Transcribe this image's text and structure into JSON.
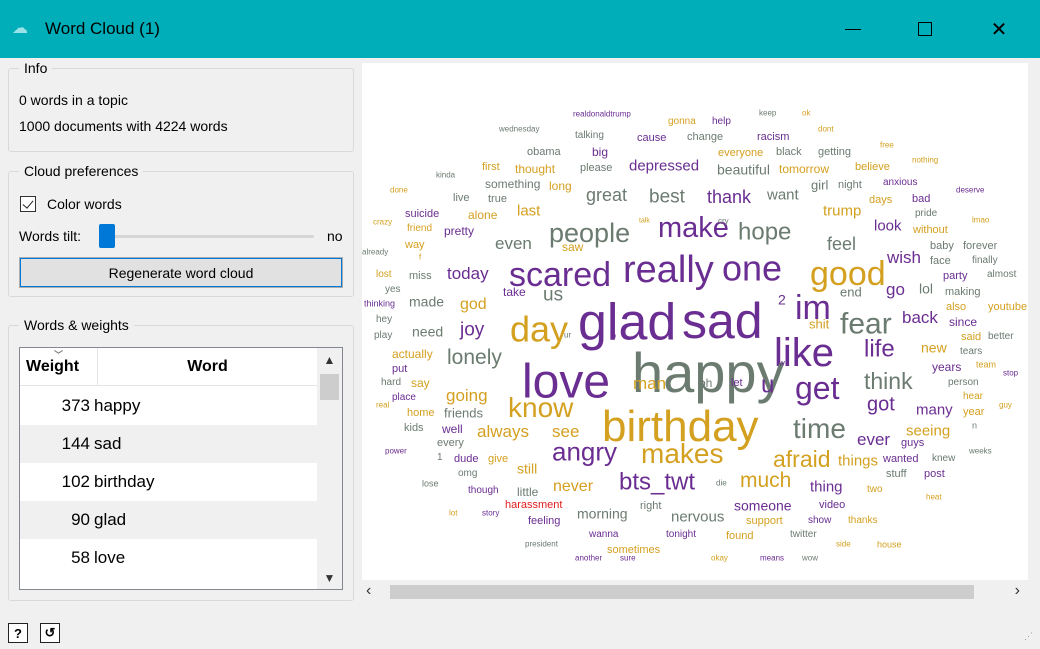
{
  "window": {
    "title": "Word Cloud (1)",
    "minimize": "minimize",
    "maximize": "maximize",
    "close": "✕"
  },
  "info": {
    "legend": "Info",
    "words_in_topic": "0 words in a topic",
    "documents": "1000 documents with 4224 words"
  },
  "prefs": {
    "legend": "Cloud preferences",
    "color_words_label": "Color words",
    "color_words_checked": true,
    "words_tilt_label": "Words tilt:",
    "words_tilt_value": "no",
    "regenerate_label": "Regenerate word cloud"
  },
  "weights": {
    "legend": "Words & weights",
    "col_weight": "Weight",
    "col_word": "Word",
    "rows": [
      {
        "weight": "373",
        "word": "happy"
      },
      {
        "weight": "144",
        "word": "sad"
      },
      {
        "weight": "102",
        "word": "birthday"
      },
      {
        "weight": "90",
        "word": "glad"
      },
      {
        "weight": "58",
        "word": "love"
      }
    ]
  },
  "colors": {
    "purple": "#6a2d91",
    "gold": "#d4a020",
    "gray": "#6b7b70",
    "red": "#e02020",
    "titlebar": "#00aeb9"
  },
  "cloud_words": [
    {
      "t": "realdonaldtrump",
      "c": "purple",
      "s": 8
    },
    {
      "t": "gonna",
      "c": "gold",
      "s": 10
    },
    {
      "t": "help",
      "c": "purple",
      "s": 10
    },
    {
      "t": "keep",
      "c": "gray",
      "s": 8
    },
    {
      "t": "ok",
      "c": "gold",
      "s": 8
    },
    {
      "t": "wednesday",
      "c": "gray",
      "s": 8
    },
    {
      "t": "talking",
      "c": "gray",
      "s": 10
    },
    {
      "t": "cause",
      "c": "purple",
      "s": 11
    },
    {
      "t": "change",
      "c": "gray",
      "s": 11
    },
    {
      "t": "racism",
      "c": "purple",
      "s": 11
    },
    {
      "t": "dont",
      "c": "gold",
      "s": 8
    },
    {
      "t": "obama",
      "c": "gray",
      "s": 11
    },
    {
      "t": "big",
      "c": "purple",
      "s": 12
    },
    {
      "t": "everyone",
      "c": "gold",
      "s": 11
    },
    {
      "t": "black",
      "c": "gray",
      "s": 11
    },
    {
      "t": "getting",
      "c": "gray",
      "s": 11
    },
    {
      "t": "free",
      "c": "gold",
      "s": 8
    },
    {
      "t": "first",
      "c": "gold",
      "s": 11
    },
    {
      "t": "thought",
      "c": "gold",
      "s": 12
    },
    {
      "t": "please",
      "c": "gray",
      "s": 11
    },
    {
      "t": "depressed",
      "c": "purple",
      "s": 15
    },
    {
      "t": "beautiful",
      "c": "gray",
      "s": 14
    },
    {
      "t": "tomorrow",
      "c": "gold",
      "s": 12
    },
    {
      "t": "believe",
      "c": "gold",
      "s": 11
    },
    {
      "t": "nothing",
      "c": "gold",
      "s": 8
    },
    {
      "t": "kinda",
      "c": "gray",
      "s": 8
    },
    {
      "t": "something",
      "c": "gray",
      "s": 12
    },
    {
      "t": "long",
      "c": "gold",
      "s": 12
    },
    {
      "t": "girl",
      "c": "gray",
      "s": 13
    },
    {
      "t": "night",
      "c": "gray",
      "s": 11
    },
    {
      "t": "anxious",
      "c": "purple",
      "s": 10
    },
    {
      "t": "done",
      "c": "gold",
      "s": 8
    },
    {
      "t": "live",
      "c": "gray",
      "s": 11
    },
    {
      "t": "true",
      "c": "gray",
      "s": 11
    },
    {
      "t": "great",
      "c": "gray",
      "s": 18
    },
    {
      "t": "best",
      "c": "gray",
      "s": 19
    },
    {
      "t": "thank",
      "c": "purple",
      "s": 18
    },
    {
      "t": "want",
      "c": "gray",
      "s": 15
    },
    {
      "t": "days",
      "c": "gold",
      "s": 11
    },
    {
      "t": "bad",
      "c": "purple",
      "s": 11
    },
    {
      "t": "deserve",
      "c": "purple",
      "s": 8
    },
    {
      "t": "suicide",
      "c": "purple",
      "s": 11
    },
    {
      "t": "alone",
      "c": "gold",
      "s": 12
    },
    {
      "t": "last",
      "c": "gold",
      "s": 15
    },
    {
      "t": "trump",
      "c": "gold",
      "s": 15
    },
    {
      "t": "pride",
      "c": "gray",
      "s": 10
    },
    {
      "t": "crazy",
      "c": "gold",
      "s": 8
    },
    {
      "t": "friend",
      "c": "gold",
      "s": 10
    },
    {
      "t": "pretty",
      "c": "purple",
      "s": 12
    },
    {
      "t": "people",
      "c": "gray",
      "s": 27
    },
    {
      "t": "talk",
      "c": "gold",
      "s": 7
    },
    {
      "t": "make",
      "c": "purple",
      "s": 29
    },
    {
      "t": "cry",
      "c": "gray",
      "s": 8
    },
    {
      "t": "hope",
      "c": "gray",
      "s": 24
    },
    {
      "t": "look",
      "c": "purple",
      "s": 15
    },
    {
      "t": "without",
      "c": "gold",
      "s": 11
    },
    {
      "t": "lmao",
      "c": "gold",
      "s": 8
    },
    {
      "t": "way",
      "c": "gold",
      "s": 11
    },
    {
      "t": "even",
      "c": "gray",
      "s": 17
    },
    {
      "t": "feel",
      "c": "gray",
      "s": 18
    },
    {
      "t": "baby",
      "c": "gray",
      "s": 11
    },
    {
      "t": "forever",
      "c": "gray",
      "s": 11
    },
    {
      "t": "already",
      "c": "gray",
      "s": 8
    },
    {
      "t": "f",
      "c": "gold",
      "s": 8
    },
    {
      "t": "saw",
      "c": "gold",
      "s": 12
    },
    {
      "t": "wish",
      "c": "purple",
      "s": 17
    },
    {
      "t": "face",
      "c": "gray",
      "s": 11
    },
    {
      "t": "finally",
      "c": "gray",
      "s": 10
    },
    {
      "t": "scared",
      "c": "purple",
      "s": 34
    },
    {
      "t": "really",
      "c": "purple",
      "s": 38
    },
    {
      "t": "one",
      "c": "purple",
      "s": 36
    },
    {
      "t": "good",
      "c": "gold",
      "s": 34
    },
    {
      "t": "lost",
      "c": "gold",
      "s": 10
    },
    {
      "t": "miss",
      "c": "gray",
      "s": 11
    },
    {
      "t": "today",
      "c": "purple",
      "s": 17
    },
    {
      "t": "party",
      "c": "purple",
      "s": 11
    },
    {
      "t": "almost",
      "c": "gray",
      "s": 10
    },
    {
      "t": "yes",
      "c": "gray",
      "s": 10
    },
    {
      "t": "take",
      "c": "purple",
      "s": 12
    },
    {
      "t": "us",
      "c": "gray",
      "s": 19
    },
    {
      "t": "glad",
      "c": "purple",
      "s": 52
    },
    {
      "t": "sad",
      "c": "purple",
      "s": 50
    },
    {
      "t": "2",
      "c": "purple",
      "s": 14
    },
    {
      "t": "im",
      "c": "purple",
      "s": 34
    },
    {
      "t": "end",
      "c": "gray",
      "s": 13
    },
    {
      "t": "go",
      "c": "purple",
      "s": 17
    },
    {
      "t": "lol",
      "c": "gray",
      "s": 14
    },
    {
      "t": "making",
      "c": "gray",
      "s": 11
    },
    {
      "t": "thinking",
      "c": "purple",
      "s": 9
    },
    {
      "t": "made",
      "c": "gray",
      "s": 14
    },
    {
      "t": "god",
      "c": "gold",
      "s": 16
    },
    {
      "t": "also",
      "c": "gold",
      "s": 11
    },
    {
      "t": "youtube",
      "c": "gold",
      "s": 11
    },
    {
      "t": "hey",
      "c": "gray",
      "s": 10
    },
    {
      "t": "day",
      "c": "gold",
      "s": 36
    },
    {
      "t": "shit",
      "c": "gold",
      "s": 13
    },
    {
      "t": "fear",
      "c": "gray",
      "s": 30
    },
    {
      "t": "back",
      "c": "purple",
      "s": 17
    },
    {
      "t": "since",
      "c": "purple",
      "s": 12
    },
    {
      "t": "need",
      "c": "gray",
      "s": 14
    },
    {
      "t": "joy",
      "c": "purple",
      "s": 19
    },
    {
      "t": "play",
      "c": "gray",
      "s": 10
    },
    {
      "t": "ur",
      "c": "gray",
      "s": 8
    },
    {
      "t": "b",
      "c": "purple",
      "s": 9
    },
    {
      "t": "like",
      "c": "purple",
      "s": 40
    },
    {
      "t": "life",
      "c": "purple",
      "s": 24
    },
    {
      "t": "said",
      "c": "gold",
      "s": 11
    },
    {
      "t": "better",
      "c": "gray",
      "s": 10
    },
    {
      "t": "actually",
      "c": "gold",
      "s": 12
    },
    {
      "t": "lonely",
      "c": "gray",
      "s": 21
    },
    {
      "t": "love",
      "c": "purple",
      "s": 48
    },
    {
      "t": "happy",
      "c": "gray",
      "s": 56
    },
    {
      "t": "new",
      "c": "gold",
      "s": 14
    },
    {
      "t": "tears",
      "c": "gray",
      "s": 10
    },
    {
      "t": "put",
      "c": "purple",
      "s": 11
    },
    {
      "t": "w",
      "c": "purple",
      "s": 8
    },
    {
      "t": "years",
      "c": "purple",
      "s": 12
    },
    {
      "t": "team",
      "c": "gold",
      "s": 9
    },
    {
      "t": "hard",
      "c": "gray",
      "s": 10
    },
    {
      "t": "say",
      "c": "gold",
      "s": 12
    },
    {
      "t": "man",
      "c": "gold",
      "s": 17
    },
    {
      "t": "oh",
      "c": "gray",
      "s": 12
    },
    {
      "t": "let",
      "c": "purple",
      "s": 11
    },
    {
      "t": "u",
      "c": "purple",
      "s": 24
    },
    {
      "t": "get",
      "c": "purple",
      "s": 32
    },
    {
      "t": "think",
      "c": "gray",
      "s": 23
    },
    {
      "t": "person",
      "c": "gray",
      "s": 10
    },
    {
      "t": "stop",
      "c": "purple",
      "s": 8
    },
    {
      "t": "place",
      "c": "purple",
      "s": 10
    },
    {
      "t": "going",
      "c": "gold",
      "s": 17
    },
    {
      "t": "know",
      "c": "gold",
      "s": 28
    },
    {
      "t": "got",
      "c": "purple",
      "s": 20
    },
    {
      "t": "hear",
      "c": "gold",
      "s": 10
    },
    {
      "t": "real",
      "c": "gold",
      "s": 8
    },
    {
      "t": "home",
      "c": "gold",
      "s": 11
    },
    {
      "t": "friends",
      "c": "gray",
      "s": 13
    },
    {
      "t": "birthday",
      "c": "gold",
      "s": 44
    },
    {
      "t": "time",
      "c": "gray",
      "s": 28
    },
    {
      "t": "many",
      "c": "purple",
      "s": 15
    },
    {
      "t": "year",
      "c": "gold",
      "s": 11
    },
    {
      "t": "guy",
      "c": "gold",
      "s": 8
    },
    {
      "t": "kids",
      "c": "gray",
      "s": 11
    },
    {
      "t": "well",
      "c": "purple",
      "s": 12
    },
    {
      "t": "always",
      "c": "gold",
      "s": 17
    },
    {
      "t": "see",
      "c": "gold",
      "s": 17
    },
    {
      "t": "seeing",
      "c": "gold",
      "s": 15
    },
    {
      "t": "n",
      "c": "gray",
      "s": 9
    },
    {
      "t": "every",
      "c": "gray",
      "s": 11
    },
    {
      "t": "angry",
      "c": "purple",
      "s": 26
    },
    {
      "t": "makes",
      "c": "gold",
      "s": 28
    },
    {
      "t": "ever",
      "c": "purple",
      "s": 17
    },
    {
      "t": "guys",
      "c": "purple",
      "s": 11
    },
    {
      "t": "power",
      "c": "purple",
      "s": 8
    },
    {
      "t": "1",
      "c": "gray",
      "s": 10
    },
    {
      "t": "dude",
      "c": "purple",
      "s": 11
    },
    {
      "t": "give",
      "c": "gold",
      "s": 11
    },
    {
      "t": "afraid",
      "c": "gold",
      "s": 23
    },
    {
      "t": "things",
      "c": "gold",
      "s": 15
    },
    {
      "t": "wanted",
      "c": "purple",
      "s": 11
    },
    {
      "t": "knew",
      "c": "gray",
      "s": 10
    },
    {
      "t": "weeks",
      "c": "gray",
      "s": 8
    },
    {
      "t": "omg",
      "c": "gray",
      "s": 10
    },
    {
      "t": "still",
      "c": "gold",
      "s": 14
    },
    {
      "t": "bts_twt",
      "c": "purple",
      "s": 24
    },
    {
      "t": "much",
      "c": "gold",
      "s": 21
    },
    {
      "t": "stuff",
      "c": "gray",
      "s": 11
    },
    {
      "t": "post",
      "c": "purple",
      "s": 11
    },
    {
      "t": "lose",
      "c": "gray",
      "s": 9
    },
    {
      "t": "never",
      "c": "gold",
      "s": 16
    },
    {
      "t": "die",
      "c": "gray",
      "s": 8
    },
    {
      "t": "thing",
      "c": "purple",
      "s": 15
    },
    {
      "t": "two",
      "c": "gold",
      "s": 10
    },
    {
      "t": "though",
      "c": "purple",
      "s": 10
    },
    {
      "t": "little",
      "c": "gray",
      "s": 12
    },
    {
      "t": "heat",
      "c": "gold",
      "s": 8
    },
    {
      "t": "harassment",
      "c": "red",
      "s": 11
    },
    {
      "t": "right",
      "c": "gray",
      "s": 11
    },
    {
      "t": "someone",
      "c": "purple",
      "s": 14
    },
    {
      "t": "video",
      "c": "purple",
      "s": 11
    },
    {
      "t": "lot",
      "c": "gold",
      "s": 8
    },
    {
      "t": "story",
      "c": "purple",
      "s": 8
    },
    {
      "t": "feeling",
      "c": "purple",
      "s": 11
    },
    {
      "t": "morning",
      "c": "gray",
      "s": 14
    },
    {
      "t": "nervous",
      "c": "gray",
      "s": 15
    },
    {
      "t": "support",
      "c": "gold",
      "s": 11
    },
    {
      "t": "show",
      "c": "purple",
      "s": 10
    },
    {
      "t": "thanks",
      "c": "gold",
      "s": 10
    },
    {
      "t": "wanna",
      "c": "purple",
      "s": 10
    },
    {
      "t": "tonight",
      "c": "purple",
      "s": 10
    },
    {
      "t": "found",
      "c": "gold",
      "s": 11
    },
    {
      "t": "twitter",
      "c": "gray",
      "s": 10
    },
    {
      "t": "president",
      "c": "gray",
      "s": 8
    },
    {
      "t": "sometimes",
      "c": "gold",
      "s": 11
    },
    {
      "t": "side",
      "c": "gold",
      "s": 8
    },
    {
      "t": "house",
      "c": "gold",
      "s": 9
    },
    {
      "t": "another",
      "c": "purple",
      "s": 8
    },
    {
      "t": "sure",
      "c": "purple",
      "s": 8
    },
    {
      "t": "okay",
      "c": "gold",
      "s": 8
    },
    {
      "t": "means",
      "c": "purple",
      "s": 8
    },
    {
      "t": "wow",
      "c": "gray",
      "s": 8
    }
  ],
  "statusbar": {
    "help": "?",
    "report": "report"
  }
}
